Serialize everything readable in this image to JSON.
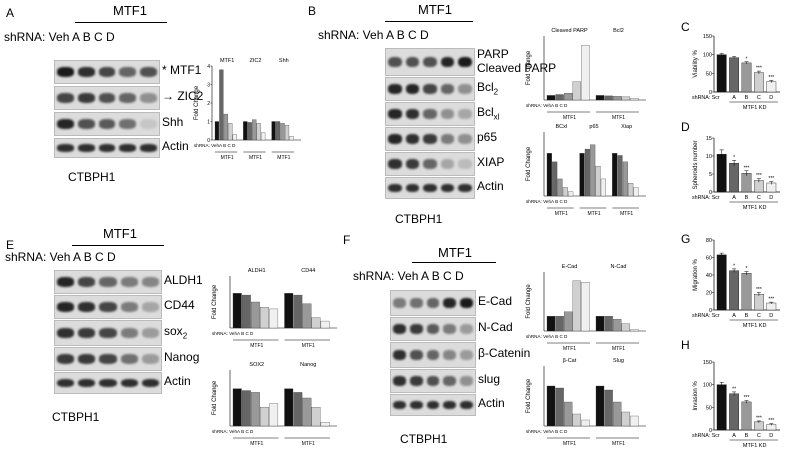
{
  "panelA": {
    "letter": "A",
    "mtf": "MTF1",
    "lanes": "shRNA: Veh  A  B   C   D",
    "cell": "CTBPH1",
    "blots": [
      {
        "label": "MTF1",
        "prefix": "*",
        "intensity": [
          0.95,
          0.85,
          0.75,
          0.6,
          0.7
        ]
      },
      {
        "label": "ZIC2",
        "prefix": "→",
        "intensity": [
          0.75,
          0.8,
          0.7,
          0.6,
          0.4
        ]
      },
      {
        "label": "Shh",
        "prefix": "",
        "intensity": [
          0.9,
          0.7,
          0.65,
          0.55,
          0.15
        ]
      },
      {
        "label": "Actin",
        "prefix": "",
        "intensity": [
          0.85,
          0.85,
          0.85,
          0.85,
          0.85
        ]
      }
    ]
  },
  "panelB": {
    "letter": "B",
    "mtf": "MTF1",
    "lanes": "shRNA: Veh  A  B   C   D",
    "cell": "CTBPH1",
    "blots": [
      {
        "label": "PARP",
        "label2": "Cleaved PARP",
        "intensity": [
          0.7,
          0.7,
          0.7,
          0.9,
          0.95
        ]
      },
      {
        "label": "Bcl2",
        "intensity": [
          0.9,
          0.9,
          0.75,
          0.6,
          0.4
        ]
      },
      {
        "label": "Bclxl",
        "intensity": [
          0.9,
          0.85,
          0.6,
          0.4,
          0.3
        ]
      },
      {
        "label": "p65",
        "intensity": [
          0.9,
          0.85,
          0.8,
          0.5,
          0.4
        ]
      },
      {
        "label": "XIAP",
        "intensity": [
          0.85,
          0.8,
          0.6,
          0.3,
          0.2
        ]
      },
      {
        "label": "Actin",
        "intensity": [
          0.85,
          0.85,
          0.85,
          0.85,
          0.85
        ]
      }
    ]
  },
  "panelE": {
    "letter": "E",
    "mtf": "MTF1",
    "lanes": "shRNA: Veh  A  B   C   D",
    "cell": "CTBPH1",
    "blots": [
      {
        "label": "ALDH1",
        "intensity": [
          0.9,
          0.75,
          0.6,
          0.5,
          0.45
        ]
      },
      {
        "label": "CD44",
        "intensity": [
          0.9,
          0.85,
          0.75,
          0.5,
          0.3
        ]
      },
      {
        "label": "sox2",
        "intensity": [
          0.85,
          0.8,
          0.75,
          0.5,
          0.35
        ]
      },
      {
        "label": "Nanog",
        "intensity": [
          0.8,
          0.8,
          0.75,
          0.55,
          0.35
        ]
      },
      {
        "label": "Actin",
        "intensity": [
          0.85,
          0.85,
          0.85,
          0.85,
          0.85
        ]
      }
    ]
  },
  "panelF": {
    "letter": "F",
    "mtf": "MTF1",
    "lanes": "shRNA: Veh  A  B   C   D",
    "cell": "CTBPH1",
    "blots": [
      {
        "label": "E-Cad",
        "intensity": [
          0.5,
          0.55,
          0.6,
          0.9,
          0.95
        ]
      },
      {
        "label": "N-Cad",
        "intensity": [
          0.85,
          0.8,
          0.65,
          0.5,
          0.35
        ]
      },
      {
        "label": "β-Catenin",
        "intensity": [
          0.85,
          0.7,
          0.6,
          0.45,
          0.35
        ]
      },
      {
        "label": "slug",
        "intensity": [
          0.85,
          0.8,
          0.7,
          0.6,
          0.4
        ]
      },
      {
        "label": "Actin",
        "intensity": [
          0.85,
          0.85,
          0.85,
          0.85,
          0.85
        ]
      }
    ]
  },
  "letters": {
    "C": "C",
    "D": "D",
    "G": "G",
    "H": "H"
  },
  "chart_data": [
    {
      "id": "A1",
      "type": "bar",
      "ylabel": "Fold Change",
      "ylim": [
        0,
        4
      ],
      "yticks": [
        "0",
        "1",
        "2",
        "3",
        "4"
      ],
      "groups": [
        {
          "name": "MTF1",
          "values": [
            1,
            3.8,
            1.4,
            0.9,
            0.3
          ]
        },
        {
          "name": "ZIC2",
          "values": [
            1,
            0.95,
            1.1,
            0.9,
            0.4
          ]
        },
        {
          "name": "Shh",
          "values": [
            1,
            1,
            0.9,
            0.8,
            0.2
          ]
        }
      ],
      "xlabel": "shRNA: VehA  B  C  D",
      "group_caption": "MTF1"
    },
    {
      "id": "B1",
      "type": "bar",
      "ylabel": "Fold Change",
      "ylim": [
        0,
        14
      ],
      "groups": [
        {
          "name": "Cleaved PARP",
          "values": [
            1,
            1.2,
            1.5,
            4,
            12
          ]
        },
        {
          "name": "Bcl2",
          "values": [
            1,
            0.9,
            0.8,
            0.7,
            0.4
          ]
        }
      ],
      "xlabel": "shRNA: VehA  B  C  D",
      "group_caption": "MTF1"
    },
    {
      "id": "B2",
      "type": "bar",
      "ylabel": "Fold Change",
      "ylim": [
        0,
        1.5
      ],
      "groups": [
        {
          "name": "BCxl",
          "values": [
            1,
            0.8,
            0.4,
            0.2,
            0.1
          ]
        },
        {
          "name": "p65",
          "values": [
            1,
            1.1,
            1.2,
            0.7,
            0.4
          ]
        },
        {
          "name": "Xiap",
          "values": [
            1,
            0.95,
            0.8,
            0.3,
            0.2
          ]
        }
      ],
      "xlabel": "shRNA: VehA  B  C  D",
      "group_caption": "MTF1"
    },
    {
      "id": "E1",
      "type": "bar",
      "ylabel": "Fold Change",
      "ylim": [
        0,
        1.5
      ],
      "groups": [
        {
          "name": "ALDH1",
          "values": [
            1,
            0.95,
            0.75,
            0.6,
            0.55
          ]
        },
        {
          "name": "CD44",
          "values": [
            1,
            0.95,
            0.7,
            0.3,
            0.2
          ]
        }
      ],
      "xlabel": "shRNA: VehA  B  C  D",
      "group_caption": "MTF1"
    },
    {
      "id": "E2",
      "type": "bar",
      "ylabel": "Fold Change",
      "ylim": [
        0,
        1.5
      ],
      "groups": [
        {
          "name": "SOX2",
          "values": [
            1,
            0.95,
            0.9,
            0.5,
            0.6
          ]
        },
        {
          "name": "Nanog",
          "values": [
            1,
            0.9,
            0.75,
            0.5,
            0.1
          ]
        }
      ],
      "xlabel": "shRNA: VehA  B  C  D",
      "group_caption": "MTF1"
    },
    {
      "id": "F1",
      "type": "bar",
      "ylabel": "Fold Change",
      "ylim": [
        0,
        4
      ],
      "groups": [
        {
          "name": "E-Cad",
          "values": [
            1,
            1,
            1.3,
            3.4,
            3.3
          ]
        },
        {
          "name": "N-Cad",
          "values": [
            1,
            1,
            0.8,
            0.5,
            0.1
          ]
        }
      ],
      "xlabel": "shRNA: VehA  B  C  D",
      "group_caption": "MTF1"
    },
    {
      "id": "F2",
      "type": "bar",
      "ylabel": "Fold Change",
      "ylim": [
        0,
        1.5
      ],
      "groups": [
        {
          "name": "β-Cat",
          "values": [
            1,
            0.95,
            0.6,
            0.3,
            0.15
          ]
        },
        {
          "name": "Slug",
          "values": [
            1,
            0.9,
            0.6,
            0.35,
            0.25
          ]
        }
      ],
      "xlabel": "shRNA: VehA  B  C  D",
      "group_caption": "MTF1"
    },
    {
      "id": "C",
      "type": "bar",
      "ylabel": "Viability %",
      "ylim": [
        0,
        150
      ],
      "yticks": [
        "0",
        "50",
        "100",
        "150"
      ],
      "categories": [
        "Scr",
        "A",
        "B",
        "C",
        "D"
      ],
      "values": [
        100,
        92,
        78,
        52,
        28
      ],
      "errors": [
        3,
        3,
        3,
        4,
        3
      ],
      "stars": [
        "",
        "",
        "*",
        "***",
        "***"
      ],
      "xlabel": "shRNA: Scr",
      "caption": "MTF1 KD"
    },
    {
      "id": "D",
      "type": "bar",
      "ylabel": "Spheroids number",
      "ylim": [
        0,
        15
      ],
      "yticks": [
        "0",
        "5",
        "10",
        "15"
      ],
      "categories": [
        "Scr",
        "A",
        "B",
        "C",
        "D"
      ],
      "values": [
        10.5,
        8,
        5.2,
        3.2,
        2.5
      ],
      "errors": [
        1.2,
        0.8,
        0.7,
        0.5,
        0.4
      ],
      "stars": [
        "",
        "*",
        "***",
        "***",
        "***"
      ],
      "xlabel": "shRNA: Scr",
      "caption": "MTF1 KD"
    },
    {
      "id": "G",
      "type": "bar",
      "ylabel": "Migration %",
      "ylim": [
        0,
        80
      ],
      "yticks": [
        "0",
        "20",
        "40",
        "60",
        "80"
      ],
      "categories": [
        "Scr",
        "A",
        "B",
        "C",
        "D"
      ],
      "values": [
        63,
        45,
        42,
        18,
        8
      ],
      "errors": [
        2,
        2,
        2,
        2,
        1
      ],
      "stars": [
        "",
        "*",
        "*",
        "***",
        "***"
      ],
      "xlabel": "shRNA: Scr",
      "caption": "MTF1 KD"
    },
    {
      "id": "H",
      "type": "bar",
      "ylabel": "Invasion %",
      "ylim": [
        0,
        150
      ],
      "yticks": [
        "0",
        "50",
        "100",
        "150"
      ],
      "categories": [
        "Scr",
        "A",
        "B",
        "C",
        "D"
      ],
      "values": [
        100,
        80,
        62,
        18,
        12
      ],
      "errors": [
        5,
        4,
        3,
        2,
        2
      ],
      "stars": [
        "",
        "**",
        "***",
        "***",
        "***"
      ],
      "xlabel": "shRNA: Scr",
      "caption": "MTF1 KD"
    }
  ]
}
